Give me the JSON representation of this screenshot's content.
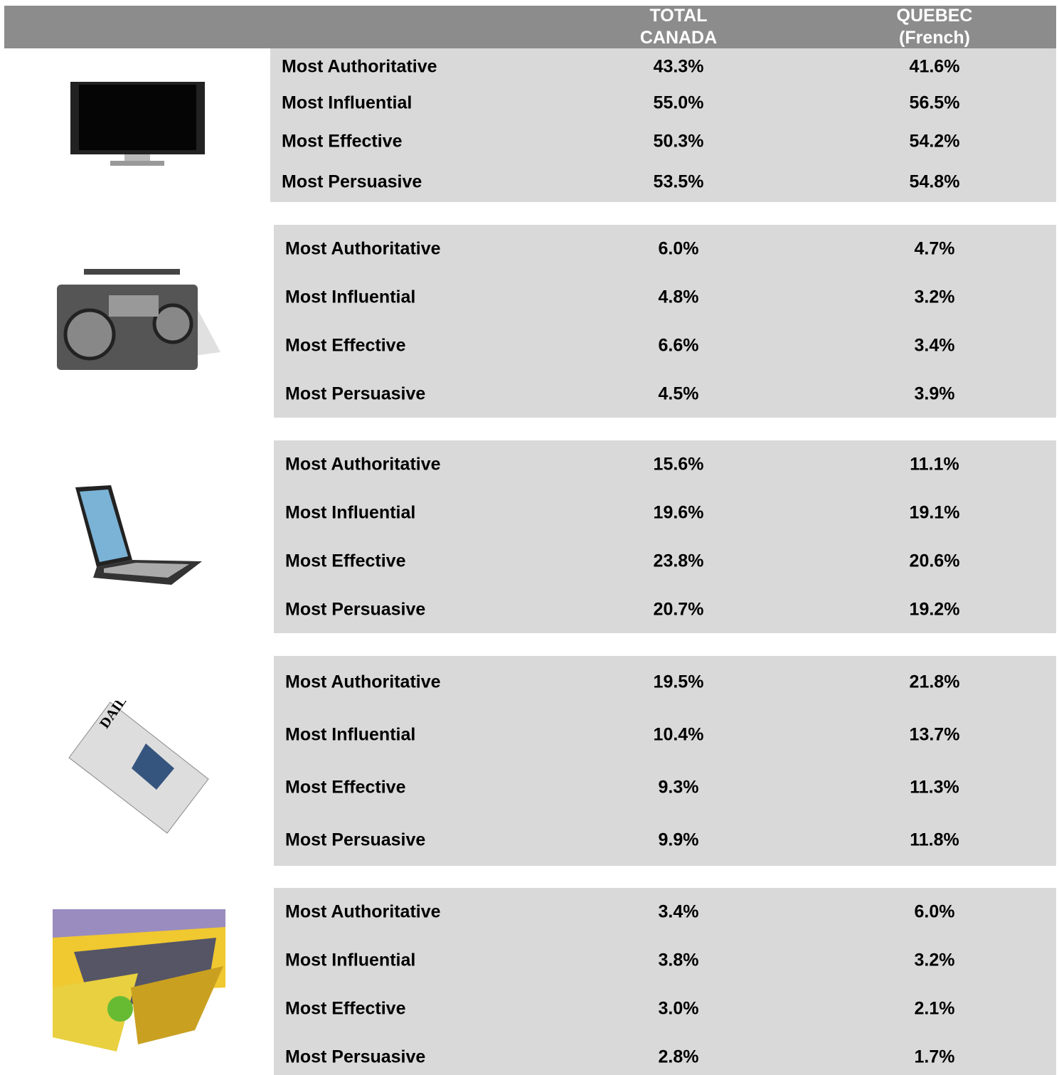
{
  "header": {
    "columns": [
      [
        "TOTAL",
        "CANADA"
      ],
      [
        "QUEBEC",
        "(French)"
      ]
    ]
  },
  "groups": [
    {
      "rows": [
        [
          "Most Authoritative",
          "43.3%",
          "41.6%"
        ],
        [
          "Most Influential",
          "55.0%",
          "56.5%"
        ],
        [
          "Most Effective",
          "50.3%",
          "54.2%"
        ],
        [
          "Most Persuasive",
          "53.5%",
          "54.8%"
        ]
      ]
    },
    {
      "rows": [
        [
          "Most Authoritative",
          "6.0%",
          "4.7%"
        ],
        [
          "Most Influential",
          "4.8%",
          "3.2%"
        ],
        [
          "Most Effective",
          "6.6%",
          "3.4%"
        ],
        [
          "Most Persuasive",
          "4.5%",
          "3.9%"
        ]
      ]
    },
    {
      "rows": [
        [
          "Most Authoritative",
          "15.6%",
          "11.1%"
        ],
        [
          "Most Influential",
          "19.6%",
          "19.1%"
        ],
        [
          "Most Effective",
          "23.8%",
          "20.6%"
        ],
        [
          "Most Persuasive",
          "20.7%",
          "19.2%"
        ]
      ]
    },
    {
      "rows": [
        [
          "Most Authoritative",
          "19.5%",
          "21.8%"
        ],
        [
          "Most Influential",
          "10.4%",
          "13.7%"
        ],
        [
          "Most Effective",
          "9.3%",
          "11.3%"
        ],
        [
          "Most Persuasive",
          "9.9%",
          "11.8%"
        ]
      ]
    },
    {
      "rows": [
        [
          "Most Authoritative",
          "3.4%",
          "6.0%"
        ],
        [
          "Most Influential",
          "3.8%",
          "3.2%"
        ],
        [
          "Most Effective",
          "3.0%",
          "2.1%"
        ],
        [
          "Most Persuasive",
          "2.8%",
          "1.7%"
        ]
      ]
    }
  ]
}
